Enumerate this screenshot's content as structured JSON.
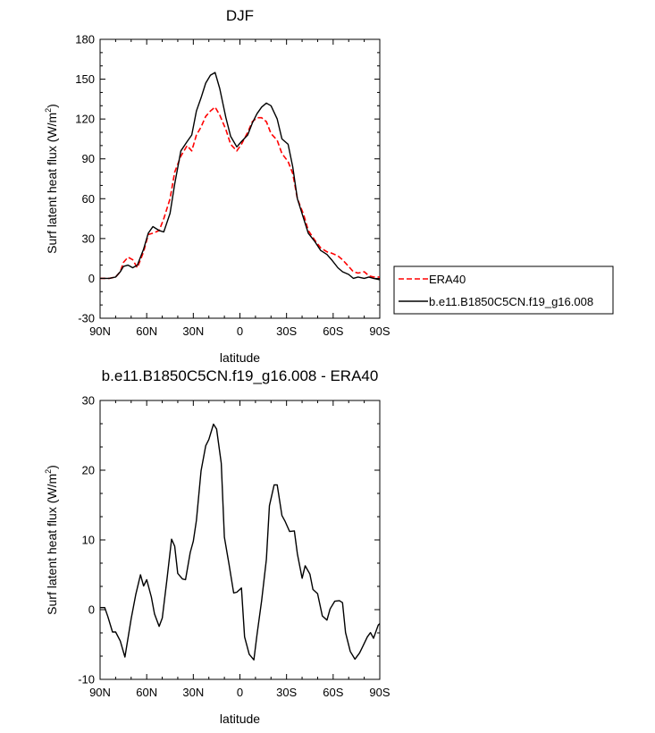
{
  "chart_data": [
    {
      "type": "line",
      "title": "DJF",
      "xlabel": "latitude",
      "ylabel": "Surf latent heat flux (W/m",
      "ylabel_sup": "2",
      "ylabel_tail": ")",
      "xlim": [
        90,
        -90
      ],
      "ylim": [
        -30,
        180
      ],
      "x_ticks": [
        90,
        60,
        30,
        0,
        -30,
        -60,
        -90
      ],
      "x_tick_labels": [
        "90N",
        "60N",
        "30N",
        "0",
        "30S",
        "60S",
        "90S"
      ],
      "y_ticks": [
        -30,
        0,
        30,
        60,
        90,
        120,
        150,
        180
      ],
      "y_tick_labels": [
        "-30",
        "0",
        "30",
        "60",
        "90",
        "120",
        "150",
        "180"
      ],
      "grid": false,
      "legend_position": "right",
      "series": [
        {
          "name": "ERA40",
          "style": "dashed",
          "color": "#ff0000",
          "x": [
            90,
            84,
            80,
            77,
            75,
            72,
            69,
            66,
            62,
            59,
            56,
            52,
            49,
            45,
            42,
            38,
            34,
            31,
            28,
            25,
            22,
            19,
            16,
            13,
            9,
            6,
            2,
            -1,
            -5,
            -8,
            -11,
            -14,
            -17,
            -20,
            -24,
            -27,
            -31,
            -34,
            -37,
            -41,
            -44,
            -48,
            -52,
            -56,
            -59,
            -63,
            -66,
            -70,
            -73,
            -76,
            -80,
            -83,
            -86,
            -90
          ],
          "values": [
            0,
            0,
            1,
            5,
            12,
            16,
            14,
            8,
            20,
            33,
            34,
            36,
            45,
            60,
            80,
            92,
            100,
            96,
            108,
            114,
            122,
            126,
            129,
            123,
            112,
            101,
            96,
            101,
            110,
            118,
            121,
            121,
            118,
            109,
            104,
            94,
            88,
            79,
            60,
            48,
            36,
            29,
            23,
            20,
            19,
            17,
            14,
            9,
            5,
            4,
            5,
            2,
            1,
            1
          ]
        },
        {
          "name": "b.e11.B1850C5CN.f19_g16.008",
          "style": "solid",
          "color": "#000000",
          "x": [
            90,
            84,
            80,
            77,
            75,
            72,
            69,
            66,
            62,
            59,
            56,
            52,
            49,
            45,
            42,
            38,
            34,
            31,
            28,
            25,
            22,
            19,
            16,
            13,
            9,
            6,
            2,
            -1,
            -5,
            -8,
            -11,
            -14,
            -17,
            -20,
            -24,
            -27,
            -31,
            -34,
            -37,
            -41,
            -44,
            -48,
            -52,
            -56,
            -59,
            -63,
            -66,
            -70,
            -73,
            -76,
            -80,
            -83,
            -86,
            -90
          ],
          "values": [
            0,
            0,
            1,
            5,
            9,
            10,
            8,
            10,
            22,
            34,
            39,
            36,
            35,
            49,
            71,
            96,
            103,
            108,
            126,
            136,
            147,
            153,
            155,
            143,
            121,
            107,
            99,
            103,
            108,
            117,
            124,
            129,
            132,
            130,
            120,
            105,
            101,
            84,
            60,
            45,
            34,
            28,
            21,
            18,
            14,
            8,
            5,
            3,
            0,
            1,
            0,
            1,
            0,
            -1
          ]
        }
      ]
    },
    {
      "type": "line",
      "title": "b.e11.B1850C5CN.f19_g16.008 - ERA40",
      "xlabel": "latitude",
      "ylabel": "Surf latent heat flux (W/m",
      "ylabel_sup": "2",
      "ylabel_tail": ")",
      "xlim": [
        90,
        -90
      ],
      "ylim": [
        -10,
        30
      ],
      "x_ticks": [
        90,
        60,
        30,
        0,
        -30,
        -60,
        -90
      ],
      "x_tick_labels": [
        "90N",
        "60N",
        "30N",
        "0",
        "30S",
        "60S",
        "90S"
      ],
      "y_ticks": [
        -10,
        0,
        10,
        20,
        30
      ],
      "y_tick_labels": [
        "-10",
        "0",
        "10",
        "20",
        "30"
      ],
      "grid": false,
      "series": [
        {
          "color": "#000000",
          "style": "solid",
          "x": [
            90,
            87,
            85,
            82,
            80,
            77,
            74,
            70,
            67,
            64,
            62,
            60,
            57,
            55,
            52,
            50,
            47,
            44,
            42,
            40,
            37,
            35,
            32,
            30,
            28,
            25,
            22,
            20,
            17,
            15,
            12,
            10,
            7,
            4,
            2,
            -1,
            -3,
            -6,
            -9,
            -11,
            -14,
            -17,
            -19,
            -22,
            -24,
            -27,
            -29,
            -32,
            -35,
            -37,
            -40,
            -42,
            -45,
            -47,
            -50,
            -53,
            -56,
            -58,
            -61,
            -64,
            -66,
            -68,
            -71,
            -74,
            -77,
            -79,
            -82,
            -84,
            -86,
            -89,
            -90
          ],
          "values": [
            0.3,
            0.3,
            -1,
            -3.2,
            -3.2,
            -4.5,
            -6.8,
            -1.3,
            2.2,
            5,
            3.4,
            4.3,
            1.8,
            -0.6,
            -2.4,
            -1.2,
            4.3,
            10.1,
            9.1,
            5.2,
            4.4,
            4.3,
            8.2,
            9.8,
            12.8,
            19.9,
            23.5,
            24.4,
            26.6,
            25.9,
            21,
            10.4,
            6.5,
            2.4,
            2.5,
            3.1,
            -3.9,
            -6.4,
            -7.2,
            -3.6,
            1.3,
            7.2,
            14.9,
            17.9,
            17.9,
            13.5,
            12.7,
            11.2,
            11.3,
            8,
            4.5,
            6.3,
            5.1,
            2.9,
            2.3,
            -0.9,
            -1.5,
            0.1,
            1.2,
            1.3,
            1,
            -3.3,
            -6,
            -7.1,
            -6.2,
            -5.3,
            -3.9,
            -3.3,
            -4.1,
            -2.2,
            -2
          ]
        }
      ]
    }
  ]
}
